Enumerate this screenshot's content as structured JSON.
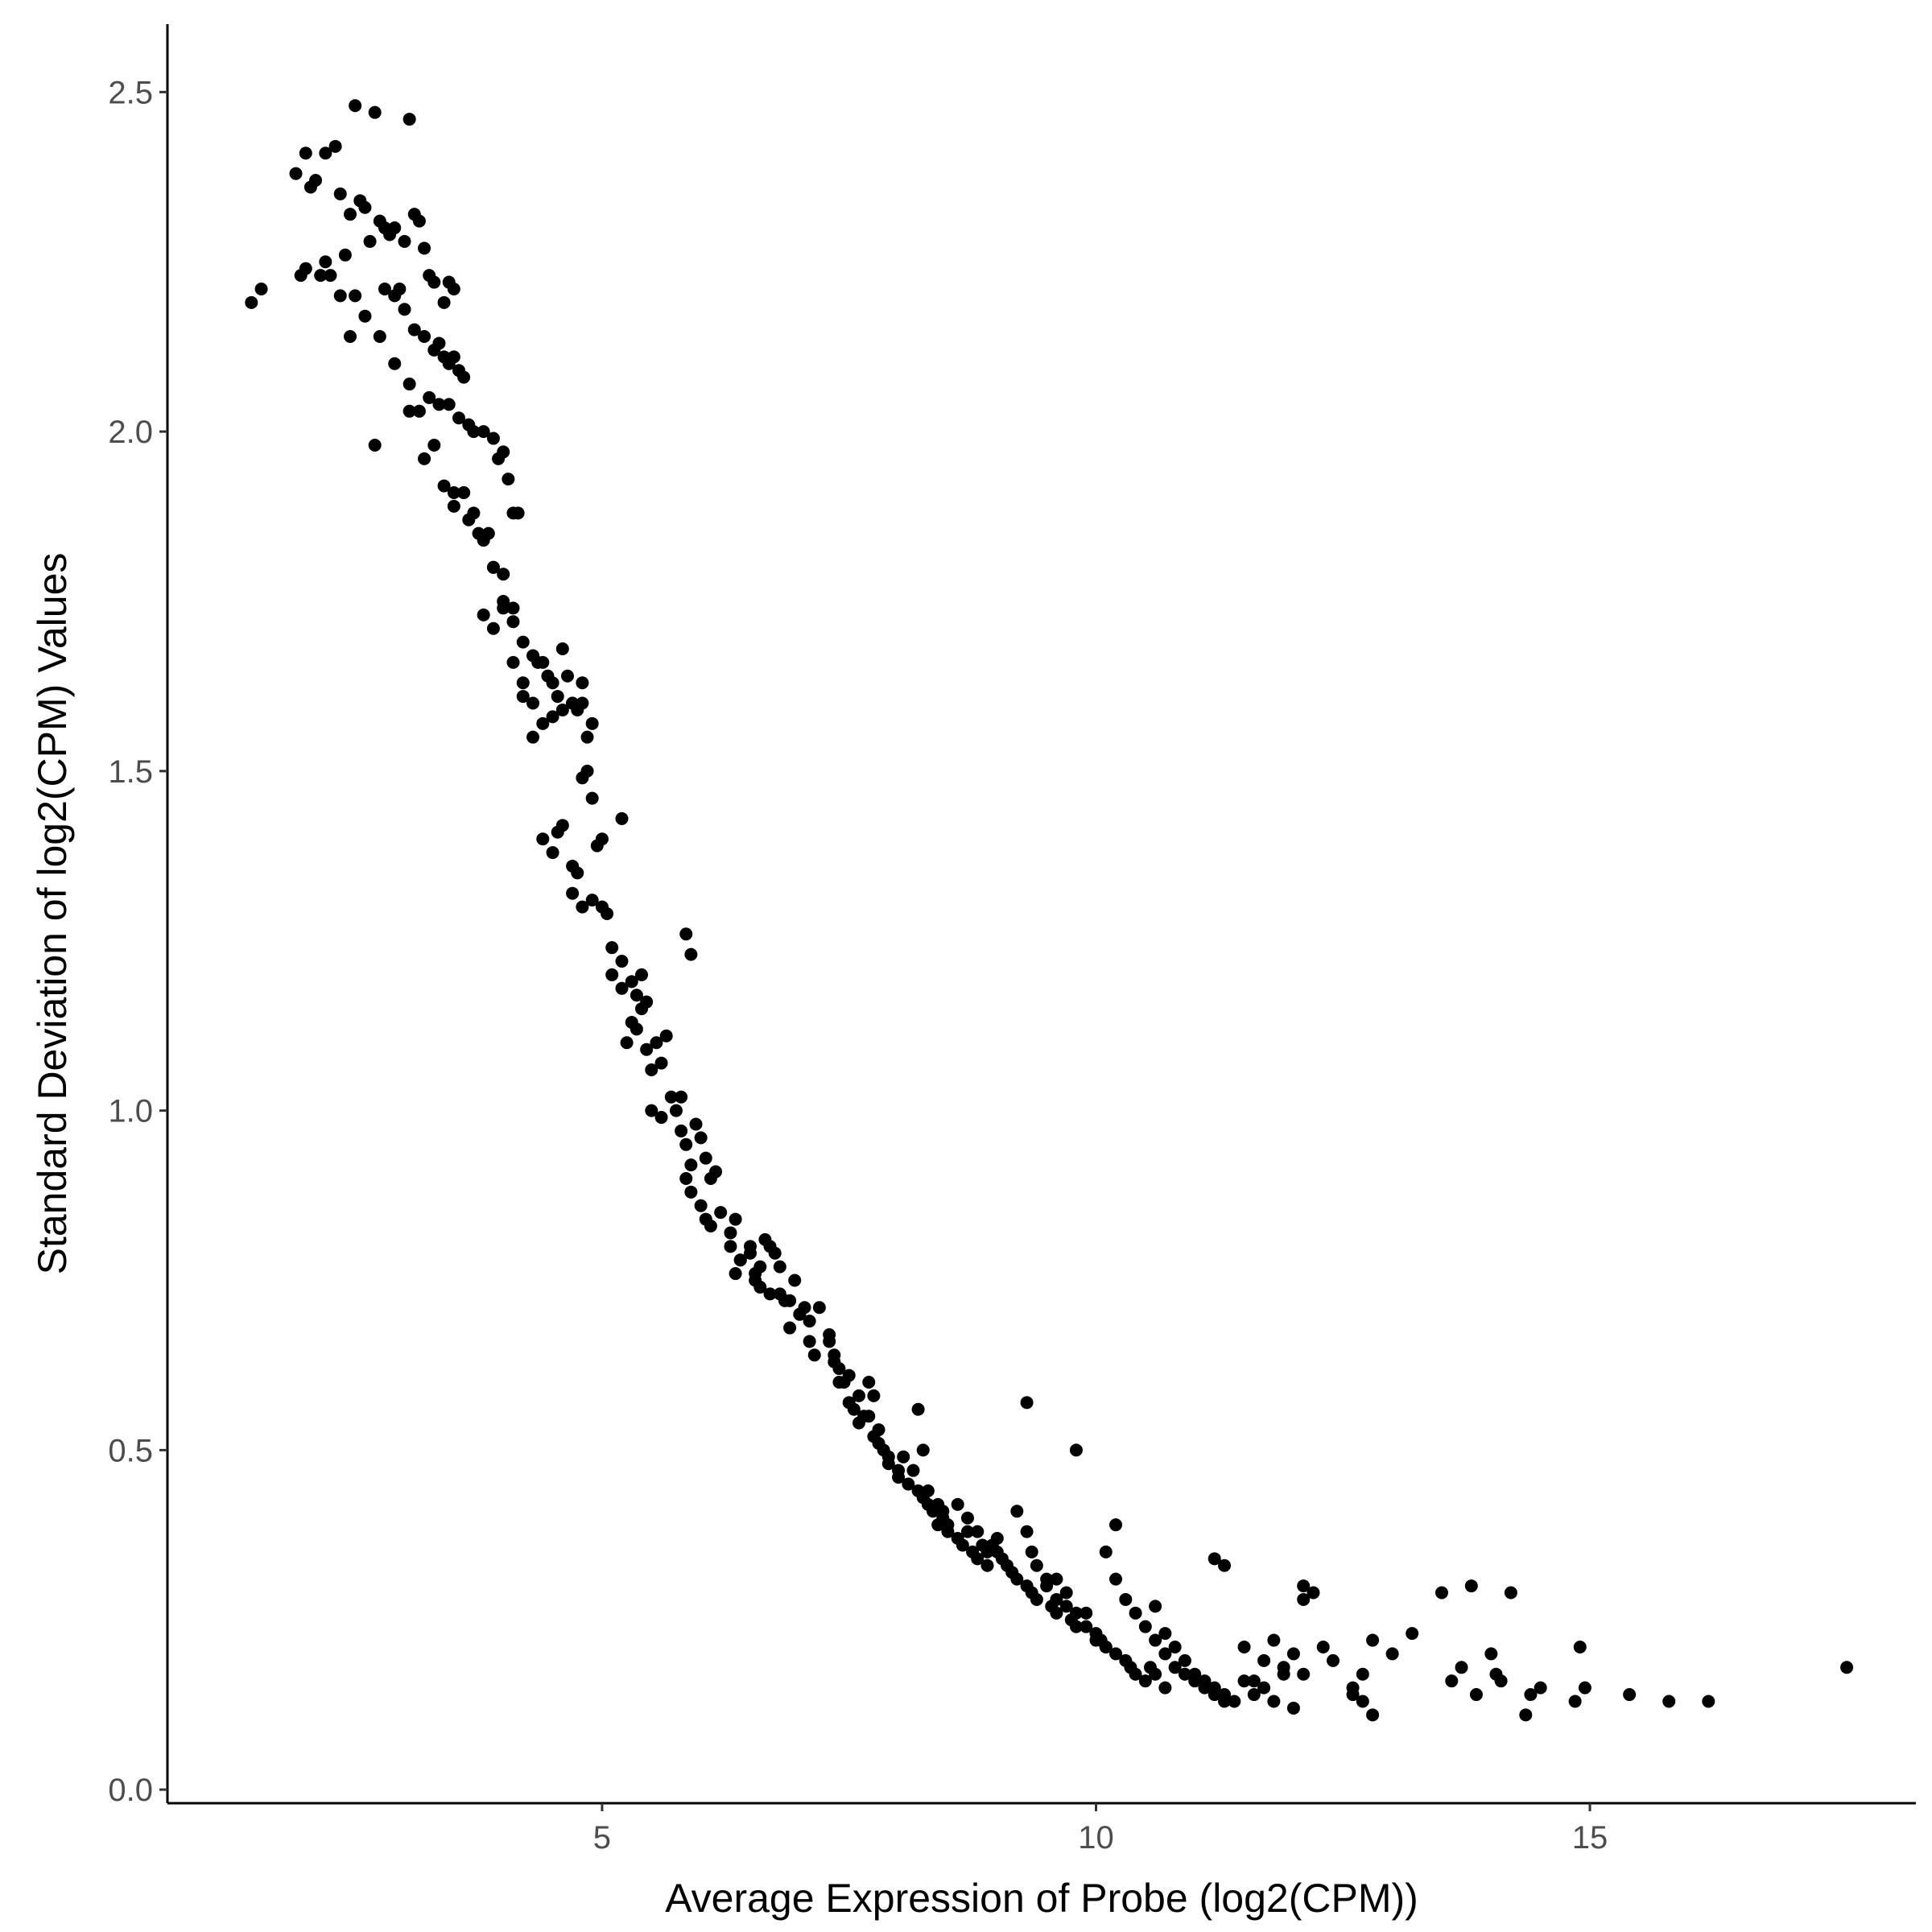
{
  "chart_data": {
    "type": "scatter",
    "title": "",
    "xlabel": "Average Expression of Probe (log2(CPM))",
    "ylabel": "Standard Deviation of log2(CPM) Values",
    "xlim": [
      0.6,
      18.3
    ],
    "ylim": [
      -0.02,
      2.6
    ],
    "x_ticks": [
      5,
      10,
      15
    ],
    "x_tick_labels": [
      "5",
      "10",
      "15"
    ],
    "y_ticks": [
      0.0,
      0.5,
      1.0,
      1.5,
      2.0,
      2.5
    ],
    "y_tick_labels": [
      "0.0",
      "0.5",
      "1.0",
      "1.5",
      "2.0",
      "2.5"
    ],
    "grid": false,
    "point_color": "#000000",
    "series": [
      {
        "x": [
          1.45,
          1.55,
          1.9,
          2.0,
          2.05,
          2.1,
          2.2,
          2.3,
          2.35,
          2.45,
          2.5,
          2.55,
          2.6,
          2.7,
          2.75,
          2.8,
          2.9,
          3.05,
          3.1,
          3.15,
          1.95,
          2.15,
          2.4,
          2.65,
          2.85,
          3.0,
          3.2,
          2.25,
          2.5,
          2.95,
          3.25,
          3.3,
          3.4,
          3.45,
          3.5,
          2.0,
          2.2,
          2.35,
          2.6,
          2.8,
          2.9,
          3.0,
          3.1,
          3.2,
          3.3,
          3.35,
          3.4,
          3.45,
          3.5,
          3.55,
          3.6,
          2.45,
          2.75,
          2.9,
          3.05,
          3.15,
          3.25,
          3.35,
          3.45,
          3.55,
          3.65,
          3.7,
          3.8,
          3.9,
          3.95,
          4.0,
          2.7,
          3.05,
          3.2,
          3.3,
          3.4,
          3.5,
          3.6,
          3.65,
          3.75,
          3.85,
          3.9,
          4.0,
          4.05,
          4.1,
          4.15,
          3.5,
          3.6,
          3.7,
          3.8,
          3.9,
          4.0,
          4.1,
          4.2,
          4.3,
          4.35,
          4.45,
          3.8,
          3.9,
          4.0,
          4.1,
          4.2,
          4.3,
          4.4,
          4.5,
          4.6,
          4.7,
          4.8,
          4.1,
          4.2,
          4.3,
          4.4,
          4.5,
          4.55,
          4.6,
          4.65,
          4.7,
          4.75,
          4.8,
          4.85,
          4.9,
          4.4,
          4.5,
          4.55,
          4.6,
          4.7,
          4.75,
          4.8,
          4.85,
          4.9,
          4.95,
          5.0,
          5.2,
          4.7,
          4.8,
          4.9,
          5.0,
          5.05,
          5.1,
          5.2,
          5.3,
          5.35,
          5.4,
          5.45,
          5.85,
          5.9,
          5.1,
          5.2,
          5.25,
          5.3,
          5.35,
          5.4,
          5.45,
          5.5,
          5.55,
          5.6,
          5.65,
          5.5,
          5.6,
          5.7,
          5.75,
          5.8,
          5.85,
          5.9,
          5.95,
          6.0,
          6.05,
          6.1,
          6.15,
          5.8,
          5.85,
          5.9,
          6.0,
          6.05,
          6.1,
          6.2,
          6.3,
          6.35,
          6.4,
          6.5,
          6.55,
          6.6,
          6.65,
          6.7,
          6.3,
          6.35,
          6.4,
          6.5,
          6.55,
          6.6,
          6.7,
          6.75,
          6.8,
          6.9,
          6.95,
          7.0,
          7.05,
          7.1,
          6.8,
          6.85,
          6.9,
          7.0,
          7.1,
          7.15,
          7.2,
          7.3,
          7.35,
          7.4,
          7.45,
          7.5,
          7.6,
          7.65,
          7.3,
          7.35,
          7.4,
          7.5,
          7.55,
          7.6,
          7.7,
          7.75,
          7.8,
          7.85,
          7.9,
          8.0,
          8.05,
          7.7,
          7.75,
          7.8,
          7.9,
          8.0,
          8.1,
          8.15,
          8.2,
          8.25,
          8.3,
          8.35,
          8.4,
          8.45,
          8.5,
          8.2,
          8.25,
          8.3,
          8.4,
          8.45,
          8.5,
          8.6,
          8.65,
          8.7,
          8.75,
          8.8,
          8.9,
          8.95,
          9.0,
          9.05,
          8.6,
          8.7,
          8.8,
          8.85,
          8.9,
          9.0,
          9.1,
          9.15,
          9.2,
          9.3,
          9.35,
          9.4,
          9.5,
          9.55,
          9.6,
          9.2,
          9.3,
          9.35,
          9.4,
          9.5,
          9.6,
          9.7,
          9.75,
          9.8,
          9.9,
          10.0,
          10.05,
          10.1,
          9.6,
          9.7,
          9.8,
          9.9,
          10.0,
          10.1,
          10.2,
          10.3,
          10.35,
          10.4,
          10.5,
          10.55,
          10.6,
          10.7,
          10.1,
          10.2,
          10.3,
          10.4,
          10.5,
          10.6,
          10.7,
          10.8,
          10.9,
          11.0,
          11.1,
          11.2,
          11.3,
          10.6,
          10.7,
          10.8,
          10.9,
          11.0,
          11.1,
          11.2,
          11.3,
          11.4,
          11.5,
          11.6,
          11.7,
          11.8,
          11.9,
          12.0,
          11.3,
          11.5,
          11.6,
          11.7,
          11.8,
          11.9,
          12.0,
          12.1,
          12.3,
          12.4,
          12.6,
          12.7,
          12.8,
          13.0,
          13.2,
          12.1,
          12.2,
          12.6,
          12.7,
          12.8,
          13.5,
          13.6,
          13.7,
          13.8,
          13.85,
          14.0,
          14.05,
          14.1,
          14.2,
          14.35,
          14.4,
          14.5,
          14.85,
          14.9,
          14.95,
          15.4,
          15.8,
          16.2,
          17.6,
          9.3,
          9.8,
          10.2,
          11.2,
          12.1
        ],
        "y": [
          2.19,
          2.21,
          2.38,
          2.41,
          2.36,
          2.37,
          2.41,
          2.42,
          2.35,
          2.32,
          2.48,
          2.34,
          2.33,
          2.47,
          2.31,
          2.3,
          2.3,
          2.46,
          2.32,
          2.31,
          2.23,
          2.23,
          2.26,
          2.28,
          2.29,
          2.28,
          2.27,
          2.23,
          2.2,
          2.21,
          2.23,
          2.22,
          2.19,
          2.22,
          2.21,
          2.24,
          2.25,
          2.2,
          2.17,
          2.21,
          2.2,
          2.18,
          2.15,
          2.14,
          2.12,
          2.13,
          2.11,
          2.1,
          2.11,
          2.09,
          2.08,
          2.14,
          2.14,
          2.1,
          2.07,
          2.03,
          2.05,
          2.04,
          2.04,
          2.02,
          2.01,
          2.0,
          2.0,
          1.99,
          1.96,
          1.97,
          1.98,
          2.03,
          1.96,
          1.98,
          1.92,
          1.91,
          1.91,
          1.87,
          1.85,
          1.85,
          1.8,
          1.79,
          1.93,
          1.88,
          1.88,
          1.89,
          1.91,
          1.88,
          1.84,
          1.8,
          1.75,
          1.72,
          1.69,
          1.67,
          1.66,
          1.64,
          1.73,
          1.71,
          1.74,
          1.74,
          1.61,
          1.6,
          1.66,
          1.63,
          1.59,
          1.6,
          1.63,
          1.66,
          1.63,
          1.55,
          1.57,
          1.58,
          1.61,
          1.68,
          1.64,
          1.6,
          1.59,
          1.6,
          1.55,
          1.57,
          1.4,
          1.38,
          1.41,
          1.42,
          1.36,
          1.35,
          1.49,
          1.5,
          1.46,
          1.39,
          1.4,
          1.43,
          1.32,
          1.3,
          1.31,
          1.3,
          1.29,
          1.24,
          1.22,
          1.19,
          1.17,
          1.2,
          1.16,
          1.26,
          1.23,
          1.2,
          1.18,
          1.1,
          1.13,
          1.12,
          1.15,
          1.09,
          1.06,
          1.1,
          1.07,
          1.11,
          1.0,
          0.99,
          1.02,
          1.0,
          0.97,
          0.95,
          0.92,
          0.98,
          0.96,
          0.93,
          0.9,
          0.91,
          1.02,
          0.9,
          0.88,
          0.86,
          0.84,
          0.83,
          0.85,
          0.8,
          0.76,
          0.78,
          0.79,
          0.75,
          0.77,
          0.81,
          0.8,
          0.82,
          0.84,
          0.78,
          0.8,
          0.76,
          0.74,
          0.73,
          0.79,
          0.77,
          0.72,
          0.75,
          0.7,
          0.71,
          0.69,
          0.73,
          0.72,
          0.68,
          0.7,
          0.66,
          0.64,
          0.71,
          0.67,
          0.63,
          0.62,
          0.6,
          0.61,
          0.58,
          0.55,
          0.66,
          0.64,
          0.6,
          0.57,
          0.56,
          0.54,
          0.55,
          0.52,
          0.51,
          0.5,
          0.48,
          0.47,
          0.49,
          0.6,
          0.58,
          0.53,
          0.49,
          0.46,
          0.45,
          0.47,
          0.44,
          0.43,
          0.42,
          0.41,
          0.39,
          0.4,
          0.38,
          0.56,
          0.5,
          0.44,
          0.42,
          0.41,
          0.39,
          0.37,
          0.36,
          0.38,
          0.35,
          0.34,
          0.33,
          0.36,
          0.35,
          0.34,
          0.42,
          0.4,
          0.38,
          0.36,
          0.35,
          0.37,
          0.33,
          0.32,
          0.31,
          0.3,
          0.29,
          0.28,
          0.31,
          0.27,
          0.26,
          0.41,
          0.38,
          0.35,
          0.33,
          0.3,
          0.28,
          0.27,
          0.25,
          0.24,
          0.26,
          0.23,
          0.22,
          0.21,
          0.31,
          0.29,
          0.26,
          0.24,
          0.22,
          0.21,
          0.2,
          0.19,
          0.18,
          0.17,
          0.16,
          0.18,
          0.17,
          0.15,
          0.35,
          0.31,
          0.28,
          0.26,
          0.24,
          0.22,
          0.2,
          0.18,
          0.17,
          0.16,
          0.15,
          0.14,
          0.13,
          0.27,
          0.23,
          0.21,
          0.19,
          0.17,
          0.16,
          0.15,
          0.14,
          0.13,
          0.16,
          0.14,
          0.15,
          0.13,
          0.17,
          0.12,
          0.33,
          0.21,
          0.16,
          0.19,
          0.22,
          0.18,
          0.2,
          0.17,
          0.21,
          0.19,
          0.14,
          0.17,
          0.22,
          0.2,
          0.23,
          0.28,
          0.29,
          0.15,
          0.13,
          0.11,
          0.29,
          0.16,
          0.18,
          0.3,
          0.14,
          0.2,
          0.17,
          0.16,
          0.29,
          0.11,
          0.14,
          0.15,
          0.13,
          0.21,
          0.15,
          0.14,
          0.13,
          0.13,
          0.18,
          0.57,
          0.5,
          0.39,
          0.34,
          0.3
        ]
      }
    ]
  }
}
